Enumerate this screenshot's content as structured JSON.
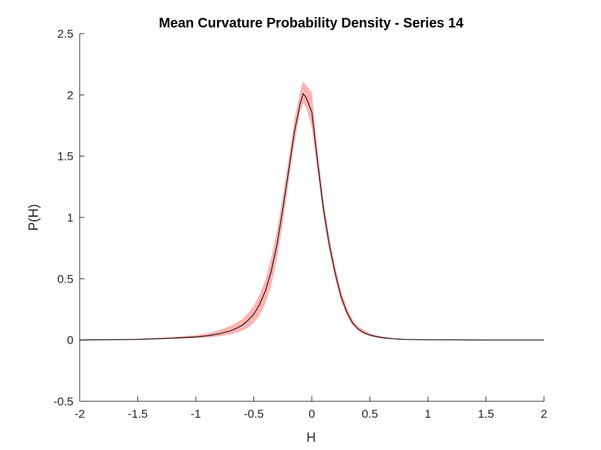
{
  "chart_data": {
    "type": "line",
    "title": "Mean Curvature Probability Density - Series 14",
    "xlabel": "H",
    "ylabel": "P(H)",
    "xlim": [
      -2,
      2
    ],
    "ylim": [
      -0.5,
      2.5
    ],
    "x_ticks": [
      -2,
      -1.5,
      -1,
      -0.5,
      0,
      0.5,
      1,
      1.5,
      2
    ],
    "y_ticks": [
      -0.5,
      0,
      0.5,
      1,
      1.5,
      2,
      2.5
    ],
    "x_tick_labels": [
      "-2",
      "-1.5",
      "-1",
      "-0.5",
      "0",
      "0.5",
      "1",
      "1.5",
      "2"
    ],
    "y_tick_labels": [
      "-0.5",
      "0",
      "0.5",
      "1",
      "1.5",
      "2",
      "2.5"
    ],
    "grid": false,
    "series": [
      {
        "line_color": "#000000",
        "band_color": "#ffb3b3",
        "x": [
          -2.0,
          -1.5,
          -1.2,
          -1.0,
          -0.9,
          -0.8,
          -0.7,
          -0.65,
          -0.6,
          -0.55,
          -0.5,
          -0.45,
          -0.4,
          -0.35,
          -0.3,
          -0.25,
          -0.2,
          -0.15,
          -0.1,
          -0.075,
          -0.05,
          -0.025,
          0.0,
          0.05,
          0.1,
          0.15,
          0.2,
          0.25,
          0.3,
          0.35,
          0.4,
          0.45,
          0.5,
          0.55,
          0.6,
          0.7,
          0.8,
          1.0,
          1.5,
          2.0
        ],
        "y": [
          0.0,
          0.005,
          0.015,
          0.025,
          0.035,
          0.05,
          0.075,
          0.095,
          0.12,
          0.16,
          0.21,
          0.29,
          0.4,
          0.56,
          0.78,
          1.07,
          1.38,
          1.7,
          1.93,
          2.01,
          1.98,
          1.92,
          1.86,
          1.45,
          1.07,
          0.78,
          0.55,
          0.36,
          0.23,
          0.14,
          0.09,
          0.06,
          0.04,
          0.03,
          0.02,
          0.01,
          0.005,
          0.002,
          0.0,
          0.0
        ],
        "lower": [
          0.0,
          0.002,
          0.008,
          0.015,
          0.02,
          0.03,
          0.045,
          0.06,
          0.075,
          0.1,
          0.14,
          0.2,
          0.3,
          0.44,
          0.66,
          0.95,
          1.28,
          1.6,
          1.86,
          1.93,
          1.9,
          1.82,
          1.73,
          1.36,
          1.0,
          0.72,
          0.5,
          0.32,
          0.2,
          0.12,
          0.07,
          0.045,
          0.03,
          0.02,
          0.012,
          0.006,
          0.002,
          0.0,
          0.0,
          0.0
        ],
        "upper": [
          0.005,
          0.01,
          0.025,
          0.04,
          0.055,
          0.08,
          0.115,
          0.14,
          0.17,
          0.22,
          0.28,
          0.37,
          0.49,
          0.67,
          0.89,
          1.18,
          1.48,
          1.8,
          2.03,
          2.11,
          2.08,
          2.05,
          2.02,
          1.55,
          1.15,
          0.85,
          0.61,
          0.41,
          0.27,
          0.17,
          0.11,
          0.08,
          0.055,
          0.04,
          0.03,
          0.016,
          0.008,
          0.004,
          0.001,
          0.0
        ]
      }
    ]
  }
}
